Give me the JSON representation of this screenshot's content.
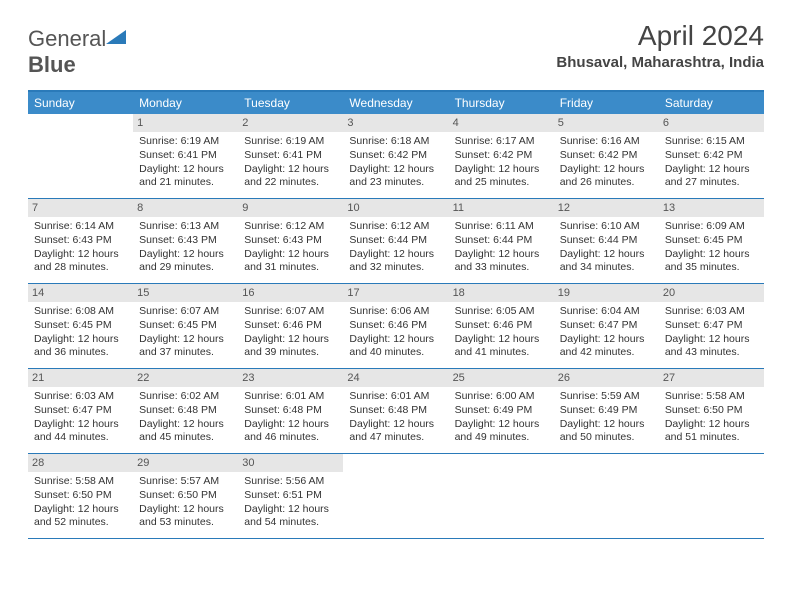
{
  "logo": {
    "word1": "General",
    "word2": "Blue"
  },
  "title": "April 2024",
  "location": "Bhusaval, Maharashtra, India",
  "accent_color": "#3b8bc9",
  "border_color": "#2a7ab9",
  "daynum_bg": "#e6e6e6",
  "text_color": "#333333",
  "day_headers": [
    "Sunday",
    "Monday",
    "Tuesday",
    "Wednesday",
    "Thursday",
    "Friday",
    "Saturday"
  ],
  "weeks": [
    [
      null,
      {
        "d": "1",
        "sr": "6:19 AM",
        "ss": "6:41 PM",
        "dl": "12 hours and 21 minutes."
      },
      {
        "d": "2",
        "sr": "6:19 AM",
        "ss": "6:41 PM",
        "dl": "12 hours and 22 minutes."
      },
      {
        "d": "3",
        "sr": "6:18 AM",
        "ss": "6:42 PM",
        "dl": "12 hours and 23 minutes."
      },
      {
        "d": "4",
        "sr": "6:17 AM",
        "ss": "6:42 PM",
        "dl": "12 hours and 25 minutes."
      },
      {
        "d": "5",
        "sr": "6:16 AM",
        "ss": "6:42 PM",
        "dl": "12 hours and 26 minutes."
      },
      {
        "d": "6",
        "sr": "6:15 AM",
        "ss": "6:42 PM",
        "dl": "12 hours and 27 minutes."
      }
    ],
    [
      {
        "d": "7",
        "sr": "6:14 AM",
        "ss": "6:43 PM",
        "dl": "12 hours and 28 minutes."
      },
      {
        "d": "8",
        "sr": "6:13 AM",
        "ss": "6:43 PM",
        "dl": "12 hours and 29 minutes."
      },
      {
        "d": "9",
        "sr": "6:12 AM",
        "ss": "6:43 PM",
        "dl": "12 hours and 31 minutes."
      },
      {
        "d": "10",
        "sr": "6:12 AM",
        "ss": "6:44 PM",
        "dl": "12 hours and 32 minutes."
      },
      {
        "d": "11",
        "sr": "6:11 AM",
        "ss": "6:44 PM",
        "dl": "12 hours and 33 minutes."
      },
      {
        "d": "12",
        "sr": "6:10 AM",
        "ss": "6:44 PM",
        "dl": "12 hours and 34 minutes."
      },
      {
        "d": "13",
        "sr": "6:09 AM",
        "ss": "6:45 PM",
        "dl": "12 hours and 35 minutes."
      }
    ],
    [
      {
        "d": "14",
        "sr": "6:08 AM",
        "ss": "6:45 PM",
        "dl": "12 hours and 36 minutes."
      },
      {
        "d": "15",
        "sr": "6:07 AM",
        "ss": "6:45 PM",
        "dl": "12 hours and 37 minutes."
      },
      {
        "d": "16",
        "sr": "6:07 AM",
        "ss": "6:46 PM",
        "dl": "12 hours and 39 minutes."
      },
      {
        "d": "17",
        "sr": "6:06 AM",
        "ss": "6:46 PM",
        "dl": "12 hours and 40 minutes."
      },
      {
        "d": "18",
        "sr": "6:05 AM",
        "ss": "6:46 PM",
        "dl": "12 hours and 41 minutes."
      },
      {
        "d": "19",
        "sr": "6:04 AM",
        "ss": "6:47 PM",
        "dl": "12 hours and 42 minutes."
      },
      {
        "d": "20",
        "sr": "6:03 AM",
        "ss": "6:47 PM",
        "dl": "12 hours and 43 minutes."
      }
    ],
    [
      {
        "d": "21",
        "sr": "6:03 AM",
        "ss": "6:47 PM",
        "dl": "12 hours and 44 minutes."
      },
      {
        "d": "22",
        "sr": "6:02 AM",
        "ss": "6:48 PM",
        "dl": "12 hours and 45 minutes."
      },
      {
        "d": "23",
        "sr": "6:01 AM",
        "ss": "6:48 PM",
        "dl": "12 hours and 46 minutes."
      },
      {
        "d": "24",
        "sr": "6:01 AM",
        "ss": "6:48 PM",
        "dl": "12 hours and 47 minutes."
      },
      {
        "d": "25",
        "sr": "6:00 AM",
        "ss": "6:49 PM",
        "dl": "12 hours and 49 minutes."
      },
      {
        "d": "26",
        "sr": "5:59 AM",
        "ss": "6:49 PM",
        "dl": "12 hours and 50 minutes."
      },
      {
        "d": "27",
        "sr": "5:58 AM",
        "ss": "6:50 PM",
        "dl": "12 hours and 51 minutes."
      }
    ],
    [
      {
        "d": "28",
        "sr": "5:58 AM",
        "ss": "6:50 PM",
        "dl": "12 hours and 52 minutes."
      },
      {
        "d": "29",
        "sr": "5:57 AM",
        "ss": "6:50 PM",
        "dl": "12 hours and 53 minutes."
      },
      {
        "d": "30",
        "sr": "5:56 AM",
        "ss": "6:51 PM",
        "dl": "12 hours and 54 minutes."
      },
      null,
      null,
      null,
      null
    ]
  ],
  "labels": {
    "sunrise": "Sunrise:",
    "sunset": "Sunset:",
    "daylight": "Daylight:"
  }
}
